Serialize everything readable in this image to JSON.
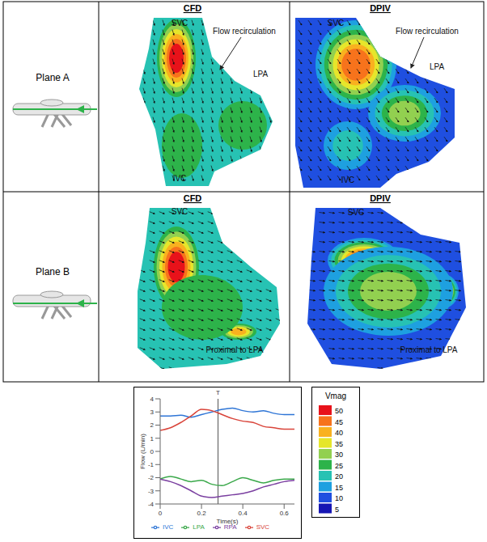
{
  "figure": {
    "columns": [
      "CFD",
      "DPIV"
    ],
    "rows": [
      {
        "plane": "Plane A",
        "CFD": [
          "SVC",
          "Flow recirculation",
          "LPA",
          "IVC"
        ],
        "DPIV": [
          "SVC",
          "Flow recirculation",
          "LPA",
          "IVC"
        ]
      },
      {
        "plane": "Plane B",
        "CFD": [
          "SVC",
          "Proximal to LPA"
        ],
        "DPIV": [
          "SVC",
          "Proximal to LPA"
        ]
      }
    ]
  },
  "color_bar": {
    "title": "Vmag",
    "ticks": [
      50,
      45,
      40,
      35,
      30,
      25,
      20,
      15,
      10,
      5
    ],
    "colors": [
      "#e8121a",
      "#f7731c",
      "#f9b11f",
      "#e6e62b",
      "#92d050",
      "#2db34a",
      "#27c2b3",
      "#1ea0e0",
      "#1f4fe0",
      "#1616b4"
    ]
  },
  "chart_data": {
    "type": "line",
    "x": [
      0,
      0.05,
      0.1,
      0.15,
      0.2,
      0.25,
      0.3,
      0.35,
      0.4,
      0.45,
      0.5,
      0.55,
      0.6,
      0.65
    ],
    "series": [
      {
        "name": "IVC",
        "color": "#2e75d6",
        "values": [
          2.7,
          2.7,
          2.75,
          2.6,
          2.8,
          3.0,
          3.2,
          3.3,
          3.1,
          3.0,
          3.1,
          2.9,
          2.8,
          2.8
        ]
      },
      {
        "name": "SVC",
        "color": "#d9443a",
        "values": [
          1.6,
          1.8,
          2.2,
          2.7,
          3.2,
          3.1,
          2.8,
          2.5,
          2.3,
          2.2,
          1.9,
          1.8,
          1.7,
          1.7
        ]
      },
      {
        "name": "LPA",
        "color": "#3aa84a",
        "values": [
          -2.1,
          -1.9,
          -2.1,
          -2.3,
          -2.2,
          -2.5,
          -2.6,
          -2.3,
          -2.0,
          -2.2,
          -2.4,
          -2.2,
          -2.1,
          -2.1
        ]
      },
      {
        "name": "RPA",
        "color": "#7a3fa0",
        "values": [
          -2.1,
          -2.3,
          -2.6,
          -3.0,
          -3.4,
          -3.5,
          -3.4,
          -3.3,
          -3.2,
          -3.0,
          -2.7,
          -2.5,
          -2.3,
          -2.2
        ]
      }
    ],
    "xlim": [
      0,
      0.65
    ],
    "ylim": [
      -4,
      4
    ],
    "xticks": [
      0,
      0.2,
      0.4,
      0.6
    ],
    "yticks": [
      -4,
      -3,
      -2,
      -1,
      0,
      1,
      2,
      3,
      4
    ],
    "x_label": "Time(s)",
    "y_label": "Flow (L/min)",
    "annotations": [
      {
        "text": "T",
        "x": 0.28
      }
    ],
    "legend": "bottom",
    "grid": false
  }
}
